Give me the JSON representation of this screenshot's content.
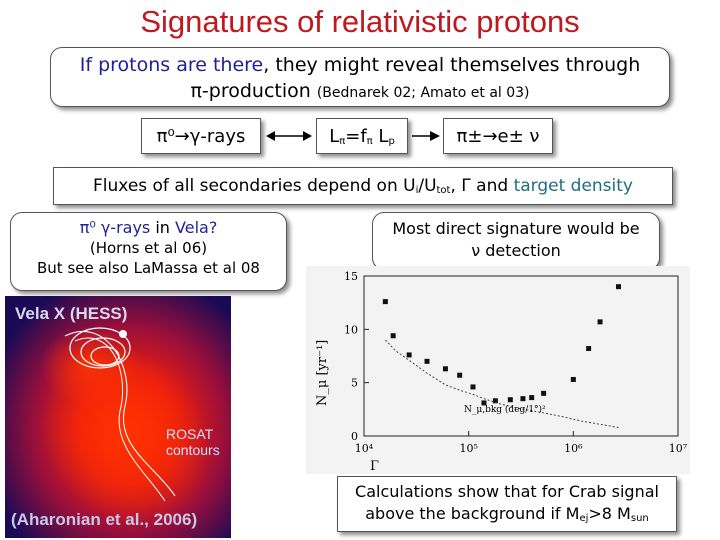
{
  "title": "Signatures of relativistic protons",
  "intro": {
    "line1_a": "If protons are there",
    "line1_b": ", they might reveal themselves through",
    "line2_main": "π-production ",
    "line2_ref": "(Bednarek 02; Amato et al 03)"
  },
  "chips": {
    "left": "π⁰→γ-rays",
    "middle_a": "L",
    "middle_b": "=f",
    "middle_c": " L",
    "middle_sub_pi": "π",
    "middle_sub_p": "p",
    "right": "π±→e±  ν"
  },
  "fluxes": {
    "text_a": "Fluxes of all secondaries depend on U",
    "sub_i": "i",
    "text_b": "/U",
    "sub_tot": "tot",
    "text_c": ", Γ and ",
    "text_d": "target density"
  },
  "left_box": {
    "line1_a": "π⁰ γ-rays",
    "line1_b": " in ",
    "line1_c": "Vela?",
    "line2": "(Horns et al 06)",
    "line3": "But see also LaMassa et al 08"
  },
  "right_box": {
    "line1": "Most direct signature would be",
    "line2": "ν detection"
  },
  "vela_image": {
    "top_label": "Vela X (HESS)",
    "rosat_label_1": "ROSAT",
    "rosat_label_2": "contours",
    "bottom_label": "(Aharonian et al., 2006)"
  },
  "calc_box": {
    "line1": "Calculations show that for Crab signal",
    "line2_a": "above the background if M",
    "sub_ej": "ej",
    "line2_b": ">8 M",
    "sub_sun": "sun"
  },
  "chart_data": {
    "type": "scatter",
    "ylabel": "N_μ [yr⁻¹]",
    "xlabel": "Γ",
    "x_scale": "log",
    "xlim": [
      10000,
      10000000
    ],
    "ylim": [
      0,
      15
    ],
    "x_ticks": [
      "10⁴",
      "10⁵",
      "10⁶",
      "10⁷"
    ],
    "y_ticks": [
      "0",
      "5",
      "10",
      "15"
    ],
    "annotation": "N_μ,bkg (deg/1°)²",
    "series": [
      {
        "points": [
          {
            "x": 16000,
            "y": 12.6
          },
          {
            "x": 19000,
            "y": 9.4
          },
          {
            "x": 27000,
            "y": 7.6
          },
          {
            "x": 40000,
            "y": 7.0
          },
          {
            "x": 60000,
            "y": 6.3
          },
          {
            "x": 82000,
            "y": 5.7
          },
          {
            "x": 110000,
            "y": 4.6
          },
          {
            "x": 140000,
            "y": 3.1
          },
          {
            "x": 180000,
            "y": 3.3
          },
          {
            "x": 250000,
            "y": 3.4
          },
          {
            "x": 330000,
            "y": 3.5
          },
          {
            "x": 400000,
            "y": 3.6
          },
          {
            "x": 520000,
            "y": 4.0
          },
          {
            "x": 1000000,
            "y": 5.3
          },
          {
            "x": 1400000,
            "y": 8.2
          },
          {
            "x": 1800000,
            "y": 10.7
          },
          {
            "x": 2700000,
            "y": 14.0
          }
        ]
      },
      {
        "points": [
          {
            "x": 16000,
            "y": 9.0
          },
          {
            "x": 20000,
            "y": 8.0
          },
          {
            "x": 27000,
            "y": 7.1
          },
          {
            "x": 40000,
            "y": 5.9
          },
          {
            "x": 60000,
            "y": 4.8
          },
          {
            "x": 82000,
            "y": 4.3
          },
          {
            "x": 110000,
            "y": 3.9
          },
          {
            "x": 140000,
            "y": 3.5
          },
          {
            "x": 200000,
            "y": 3.0
          },
          {
            "x": 300000,
            "y": 2.6
          },
          {
            "x": 500000,
            "y": 2.2
          },
          {
            "x": 800000,
            "y": 1.8
          },
          {
            "x": 1200000,
            "y": 1.4
          },
          {
            "x": 1800000,
            "y": 1.1
          },
          {
            "x": 2700000,
            "y": 0.8
          }
        ]
      }
    ]
  }
}
